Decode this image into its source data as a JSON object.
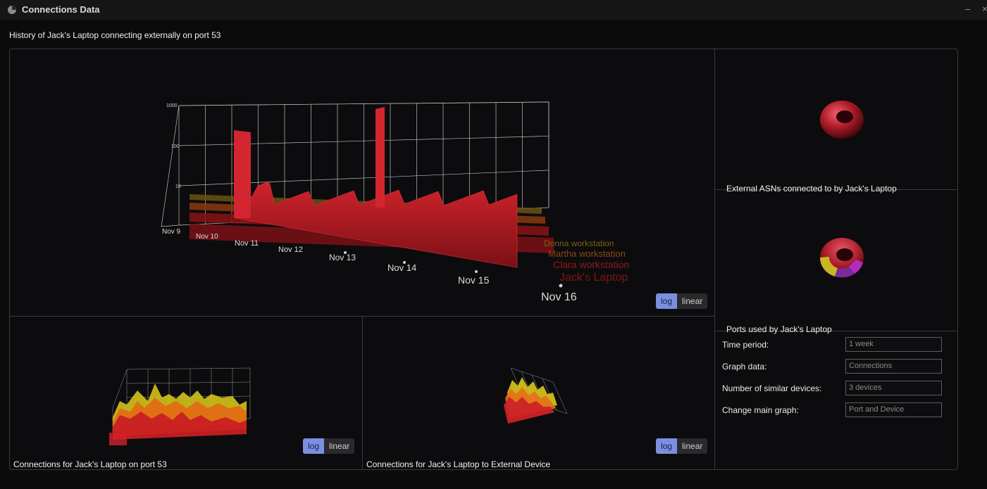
{
  "window": {
    "title": "Connections Data",
    "minimize_glyph": "–",
    "close_glyph": "×"
  },
  "main": {
    "header": "History of Jack's Laptop connecting externally on port 53"
  },
  "main_chart": {
    "type": "area",
    "y_ticks": [
      "1000",
      "100",
      "10"
    ],
    "x_ticks": [
      "Nov 9",
      "Nov 10",
      "Nov 11",
      "Nov 12",
      "Nov 13",
      "Nov 14",
      "Nov 15",
      "Nov 16"
    ],
    "series_labels": [
      "Donna workstation",
      "Martha workstation",
      "Clara workstation",
      "Jack's Laptop"
    ],
    "toggle": {
      "log": "log",
      "linear": "linear",
      "active": "log"
    }
  },
  "chart_data": [
    {
      "type": "area",
      "scale": "log",
      "x": [
        "Nov 9",
        "Nov 10",
        "Nov 11",
        "Nov 12",
        "Nov 13",
        "Nov 14",
        "Nov 15",
        "Nov 16"
      ],
      "ylim": [
        1,
        1000
      ],
      "series": [
        {
          "name": "Jack's Laptop",
          "values": [
            300,
            8,
            6,
            5,
            5,
            1000,
            5,
            3
          ]
        },
        {
          "name": "Clara workstation",
          "values": [
            1,
            1,
            1,
            1,
            1,
            1,
            1,
            1
          ]
        },
        {
          "name": "Martha workstation",
          "values": [
            1,
            1,
            1,
            1,
            1,
            1,
            1,
            1
          ]
        },
        {
          "name": "Donna workstation",
          "values": [
            1,
            1,
            1,
            1,
            1,
            1,
            1,
            1
          ]
        }
      ]
    }
  ],
  "side_panels": {
    "asn_title": "External ASNs connected to by Jack's Laptop",
    "ports_title": "Ports used by Jack's Laptop"
  },
  "bottom_panels": {
    "left": {
      "title": "Connections for Jack's Laptop on port 53",
      "toggle": {
        "log": "log",
        "linear": "linear"
      }
    },
    "right": {
      "title": "Connections for Jack's Laptop to External Device",
      "toggle": {
        "log": "log",
        "linear": "linear"
      }
    }
  },
  "settings": {
    "time_period": {
      "label": "Time period:",
      "value": "1 week"
    },
    "graph_data": {
      "label": "Graph data:",
      "value": "Connections"
    },
    "similar_devices": {
      "label": "Number of similar devices:",
      "value": "3 devices"
    },
    "main_graph": {
      "label": "Change main graph:",
      "value": "Port and Device"
    }
  },
  "colors": {
    "accent": "#7b8fe0",
    "jack": "#c8202a",
    "clara": "#a81a1a",
    "martha": "#b04a12",
    "donna": "#8a6c12",
    "background": "#0b0b0c"
  },
  "icons": [
    "pie-chart-icon",
    "minimize-icon",
    "close-icon"
  ]
}
